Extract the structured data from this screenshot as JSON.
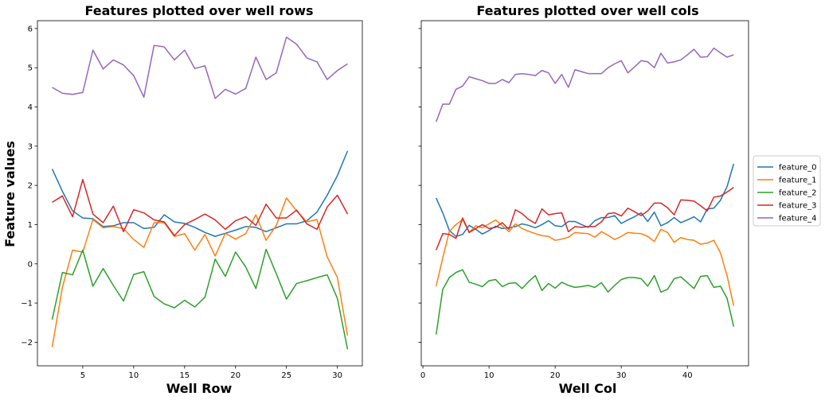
{
  "chart_data": [
    {
      "type": "line",
      "title": "Features plotted over well rows",
      "xlabel": "Well Row",
      "ylabel": "Feature values",
      "xlim": [
        0.55,
        32.45
      ],
      "ylim": [
        -2.6,
        6.2
      ],
      "xticks": [
        5,
        10,
        15,
        20,
        25,
        30
      ],
      "yticks": [
        -2,
        -1,
        0,
        1,
        2,
        3,
        4,
        5,
        6
      ],
      "x": [
        2,
        3,
        4,
        5,
        6,
        7,
        8,
        9,
        10,
        11,
        12,
        13,
        14,
        15,
        16,
        17,
        18,
        19,
        20,
        21,
        22,
        23,
        24,
        25,
        26,
        27,
        28,
        29,
        30,
        31
      ],
      "series": [
        {
          "name": "feature_0",
          "color": "#1f77b4",
          "values": [
            2.42,
            1.85,
            1.35,
            1.17,
            1.15,
            0.95,
            0.97,
            1.05,
            1.05,
            0.9,
            0.93,
            1.25,
            1.07,
            1.03,
            0.93,
            0.8,
            0.7,
            0.78,
            0.86,
            0.95,
            0.93,
            0.82,
            0.92,
            1.02,
            1.02,
            1.1,
            1.32,
            1.75,
            2.25,
            2.88
          ]
        },
        {
          "name": "feature_1",
          "color": "#ff7f0e",
          "values": [
            -2.12,
            -0.6,
            0.35,
            0.3,
            1.13,
            0.92,
            0.95,
            0.9,
            0.62,
            0.42,
            1.05,
            1.05,
            0.7,
            0.77,
            0.35,
            0.75,
            0.2,
            0.78,
            0.63,
            0.77,
            1.25,
            0.6,
            0.98,
            1.68,
            1.35,
            1.07,
            1.13,
            0.18,
            -0.35,
            -1.83
          ]
        },
        {
          "name": "feature_2",
          "color": "#2ca02c",
          "values": [
            -1.42,
            -0.22,
            -0.28,
            0.35,
            -0.57,
            -0.12,
            -0.55,
            -0.95,
            -0.27,
            -0.2,
            -0.83,
            -1.02,
            -1.12,
            -0.93,
            -1.1,
            -0.85,
            0.12,
            -0.32,
            0.3,
            -0.08,
            -0.63,
            0.37,
            -0.25,
            -0.9,
            -0.5,
            -0.43,
            -0.35,
            -0.28,
            -0.88,
            -2.18
          ]
        },
        {
          "name": "feature_3",
          "color": "#d62728",
          "values": [
            1.57,
            1.73,
            1.2,
            2.15,
            1.27,
            1.05,
            1.47,
            0.82,
            1.38,
            1.3,
            1.12,
            1.07,
            0.72,
            1.0,
            1.13,
            1.27,
            1.12,
            0.88,
            1.1,
            1.2,
            0.98,
            1.52,
            1.17,
            1.17,
            1.37,
            1.02,
            0.88,
            1.45,
            1.75,
            1.27
          ]
        },
        {
          "name": "feature_4",
          "color": "#9467bd",
          "values": [
            4.5,
            4.35,
            4.32,
            4.37,
            5.45,
            4.97,
            5.2,
            5.07,
            4.8,
            4.25,
            5.57,
            5.53,
            5.2,
            5.45,
            4.98,
            5.05,
            4.22,
            4.45,
            4.33,
            4.47,
            5.27,
            4.7,
            4.87,
            5.78,
            5.6,
            5.25,
            5.15,
            4.7,
            4.93,
            5.1
          ]
        }
      ]
    },
    {
      "type": "line",
      "title": "Features plotted over well cols",
      "xlabel": "Well Col",
      "ylabel": "",
      "xlim": [
        -0.25,
        49.25
      ],
      "ylim": [
        -2.6,
        6.2
      ],
      "xticks": [
        0,
        10,
        20,
        30,
        40
      ],
      "yticks": [
        -2,
        -1,
        0,
        1,
        2,
        3,
        4,
        5,
        6
      ],
      "x": [
        2,
        3,
        4,
        5,
        6,
        7,
        8,
        9,
        10,
        11,
        12,
        13,
        14,
        15,
        16,
        17,
        18,
        19,
        20,
        21,
        22,
        23,
        24,
        25,
        26,
        27,
        28,
        29,
        30,
        31,
        32,
        33,
        34,
        35,
        36,
        37,
        38,
        39,
        40,
        41,
        42,
        43,
        44,
        45,
        46,
        47
      ],
      "series": [
        {
          "name": "feature_0",
          "color": "#1f77b4",
          "values": [
            1.68,
            1.3,
            0.85,
            0.7,
            0.75,
            0.98,
            0.88,
            0.76,
            0.85,
            0.96,
            0.9,
            0.92,
            0.95,
            1.02,
            0.98,
            0.92,
            1.0,
            1.1,
            0.97,
            0.95,
            1.08,
            1.08,
            1.0,
            0.93,
            1.1,
            1.18,
            1.18,
            1.23,
            1.03,
            1.12,
            1.2,
            1.3,
            1.08,
            1.32,
            0.97,
            1.05,
            1.18,
            1.05,
            1.12,
            1.2,
            1.07,
            1.4,
            1.42,
            1.62,
            1.97,
            2.55
          ]
        },
        {
          "name": "feature_1",
          "color": "#ff7f0e",
          "values": [
            -0.57,
            0.15,
            0.83,
            1.0,
            1.13,
            0.8,
            0.97,
            0.92,
            1.02,
            1.12,
            0.97,
            0.82,
            1.02,
            0.9,
            0.83,
            0.77,
            0.72,
            0.7,
            0.6,
            0.63,
            0.68,
            0.8,
            0.78,
            0.77,
            0.68,
            0.82,
            0.73,
            0.62,
            0.7,
            0.8,
            0.78,
            0.77,
            0.7,
            0.57,
            0.88,
            0.8,
            0.55,
            0.67,
            0.62,
            0.6,
            0.5,
            0.53,
            0.6,
            0.28,
            -0.3,
            -1.07
          ]
        },
        {
          "name": "feature_2",
          "color": "#2ca02c",
          "values": [
            -1.8,
            -0.65,
            -0.35,
            -0.22,
            -0.15,
            -0.47,
            -0.52,
            -0.58,
            -0.43,
            -0.4,
            -0.58,
            -0.5,
            -0.48,
            -0.63,
            -0.45,
            -0.3,
            -0.68,
            -0.5,
            -0.62,
            -0.47,
            -0.55,
            -0.6,
            -0.58,
            -0.55,
            -0.6,
            -0.48,
            -0.72,
            -0.55,
            -0.4,
            -0.35,
            -0.35,
            -0.38,
            -0.57,
            -0.3,
            -0.72,
            -0.65,
            -0.38,
            -0.33,
            -0.48,
            -0.63,
            -0.32,
            -0.3,
            -0.6,
            -0.57,
            -0.88,
            -1.6
          ]
        },
        {
          "name": "feature_3",
          "color": "#d62728",
          "values": [
            0.35,
            0.77,
            0.75,
            0.65,
            1.17,
            0.8,
            0.9,
            1.0,
            0.9,
            0.93,
            1.05,
            0.88,
            1.38,
            1.28,
            1.13,
            1.03,
            1.4,
            1.25,
            1.28,
            1.3,
            0.82,
            0.95,
            0.93,
            0.95,
            0.95,
            1.07,
            1.28,
            1.3,
            1.22,
            1.42,
            1.33,
            1.23,
            1.35,
            1.55,
            1.55,
            1.43,
            1.25,
            1.63,
            1.62,
            1.6,
            1.48,
            1.35,
            1.7,
            1.73,
            1.83,
            1.95
          ]
        },
        {
          "name": "feature_4",
          "color": "#9467bd",
          "values": [
            3.62,
            4.07,
            4.07,
            4.45,
            4.53,
            4.77,
            4.72,
            4.67,
            4.6,
            4.6,
            4.7,
            4.62,
            4.83,
            4.85,
            4.83,
            4.8,
            4.93,
            4.87,
            4.6,
            4.83,
            4.5,
            4.95,
            4.9,
            4.85,
            4.85,
            4.85,
            5.0,
            5.1,
            5.18,
            4.87,
            5.02,
            5.18,
            5.15,
            5.0,
            5.37,
            5.12,
            5.15,
            5.2,
            5.33,
            5.47,
            5.27,
            5.28,
            5.5,
            5.38,
            5.27,
            5.33
          ]
        }
      ]
    }
  ]
}
